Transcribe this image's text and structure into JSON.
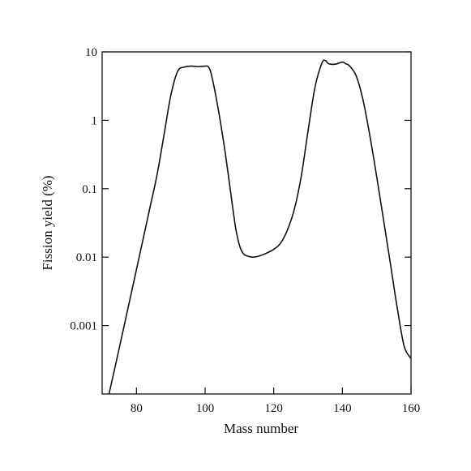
{
  "chart_data": {
    "type": "line",
    "title": "",
    "xlabel": "Mass number",
    "ylabel": "Fission yield (%)",
    "xlim": [
      70,
      160
    ],
    "ylim": [
      0.0001,
      10
    ],
    "yscale": "log",
    "grid": false,
    "x_ticks": [
      80,
      100,
      120,
      140,
      160
    ],
    "x_tick_labels": [
      "80",
      "100",
      "120",
      "140",
      "160"
    ],
    "y_ticks": [
      0.001,
      0.01,
      0.1,
      1,
      10
    ],
    "y_tick_labels": [
      "0.001",
      "0.01",
      "0.1",
      "1",
      "10"
    ],
    "series": [
      {
        "x": [
          72,
          74,
          76,
          78,
          80,
          82,
          84,
          86,
          88,
          90,
          92,
          94,
          96,
          98,
          100,
          101,
          102,
          104,
          106,
          108,
          109,
          110,
          111,
          112,
          114,
          116,
          118,
          120,
          122,
          124,
          126,
          128,
          130,
          132,
          134,
          135,
          136,
          138,
          140,
          141,
          142,
          144,
          146,
          148,
          150,
          152,
          154,
          156,
          158,
          160
        ],
        "y": [
          0.0001,
          0.00028,
          0.0008,
          0.0023,
          0.0066,
          0.019,
          0.055,
          0.16,
          0.6,
          2.3,
          5.2,
          6.0,
          6.2,
          6.1,
          6.2,
          6.0,
          4.3,
          1.3,
          0.3,
          0.055,
          0.025,
          0.015,
          0.0115,
          0.0105,
          0.01,
          0.0105,
          0.0115,
          0.013,
          0.016,
          0.025,
          0.05,
          0.15,
          0.7,
          3.0,
          6.8,
          7.5,
          6.7,
          6.6,
          7.1,
          6.7,
          6.3,
          4.5,
          2.0,
          0.6,
          0.15,
          0.035,
          0.008,
          0.0018,
          0.0005,
          0.00033
        ]
      }
    ]
  }
}
